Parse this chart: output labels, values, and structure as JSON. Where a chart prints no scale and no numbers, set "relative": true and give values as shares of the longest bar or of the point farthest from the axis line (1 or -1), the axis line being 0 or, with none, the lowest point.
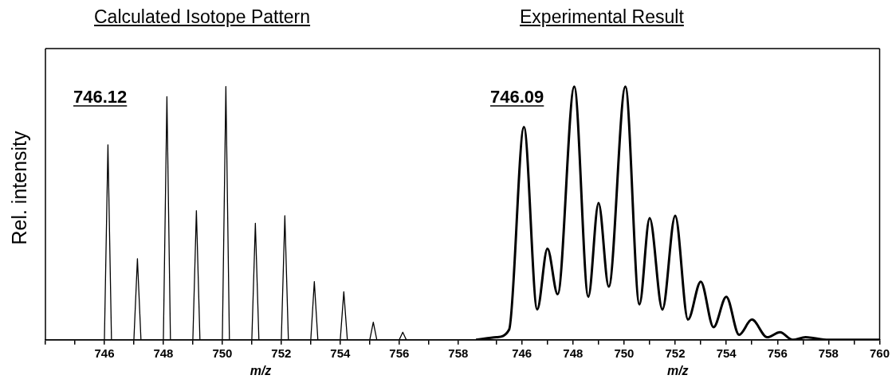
{
  "chart_data": [
    {
      "type": "line",
      "title": "Calculated Isotope Pattern",
      "xlabel": "m/z",
      "ylabel": "Rel. intensity",
      "relative": true,
      "xlim": [
        744,
        758.6
      ],
      "xticks": [
        {
          "value": 744,
          "label": null
        },
        {
          "value": 745,
          "label": null
        },
        746,
        {
          "value": 747,
          "label": null
        },
        748,
        {
          "value": 749,
          "label": null
        },
        750,
        {
          "value": 751,
          "label": null
        },
        752,
        {
          "value": 753,
          "label": null
        },
        754,
        {
          "value": 755,
          "label": null
        },
        756,
        {
          "value": 757,
          "label": null
        },
        758
      ],
      "annotations": [
        "746.12"
      ],
      "grid": false,
      "legend": false,
      "marker": "none",
      "line_style": "solid",
      "series": [
        {
          "color": "#000000",
          "x": [
            744,
            746.0,
            746.12,
            746.24,
            747.0,
            747.12,
            747.24,
            748.0,
            748.12,
            748.24,
            749.0,
            749.12,
            749.24,
            750.0,
            750.12,
            750.24,
            751.0,
            751.12,
            751.24,
            752.0,
            752.12,
            752.24,
            753.0,
            753.12,
            753.24,
            754.0,
            754.12,
            754.24,
            755.0,
            755.12,
            755.24,
            756.0,
            756.12,
            756.24,
            758.6
          ],
          "values": [
            0,
            0,
            0.77,
            0,
            0,
            0.32,
            0,
            0,
            0.96,
            0,
            0,
            0.51,
            0,
            0,
            1,
            0,
            0,
            0.46,
            0,
            0,
            0.49,
            0,
            0,
            0.23,
            0,
            0,
            0.19,
            0,
            0,
            0.07,
            0,
            0,
            0.03,
            0,
            0
          ]
        }
      ]
    },
    {
      "type": "line",
      "title": "Experimental Result",
      "xlabel": "m/z",
      "relative": true,
      "xlim": [
        744.2,
        760
      ],
      "xticks": [
        {
          "value": 745,
          "label": null
        },
        746,
        {
          "value": 747,
          "label": null
        },
        748,
        {
          "value": 749,
          "label": null
        },
        750,
        {
          "value": 751,
          "label": null
        },
        752,
        {
          "value": 753,
          "label": null
        },
        754,
        {
          "value": 755,
          "label": null
        },
        756,
        {
          "value": 757,
          "label": null
        },
        758,
        {
          "value": 759,
          "label": null
        },
        760
      ],
      "annotations": [
        "746.09"
      ],
      "grid": false,
      "legend": false,
      "marker": "none",
      "line_style": "solid",
      "series": [
        {
          "color": "#000000",
          "x": [
            744.2,
            745,
            745.5,
            746.08,
            746.6,
            747.0,
            747.4,
            748.05,
            748.6,
            749.0,
            749.4,
            750.05,
            750.6,
            751.0,
            751.5,
            752.0,
            752.5,
            753.0,
            753.5,
            754.0,
            754.5,
            755.0,
            755.6,
            756.1,
            756.6,
            757.1,
            758,
            760
          ],
          "values": [
            0,
            0.01,
            0.04,
            0.84,
            0.12,
            0.36,
            0.18,
            1,
            0.17,
            0.54,
            0.21,
            1,
            0.14,
            0.48,
            0.12,
            0.49,
            0.08,
            0.23,
            0.05,
            0.17,
            0.02,
            0.08,
            0.01,
            0.03,
            0,
            0.01,
            0,
            0
          ]
        }
      ]
    }
  ]
}
